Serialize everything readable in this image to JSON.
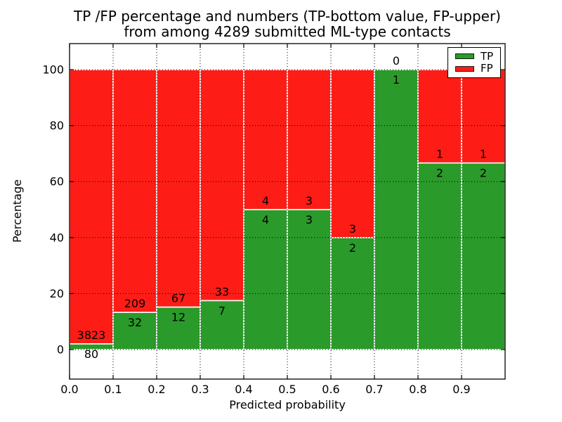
{
  "chart_data": {
    "type": "bar",
    "stacked": true,
    "title_line1": "TP /FP percentage and numbers (TP-bottom value, FP-upper)",
    "title_line2": "from among 4289 submitted ML-type contacts",
    "xlabel": "Predicted probability",
    "ylabel": "Percentage",
    "x_ticks": [
      0.0,
      0.1,
      0.2,
      0.3,
      0.4,
      0.5,
      0.6,
      0.7,
      0.8,
      0.9
    ],
    "x_tick_labels": [
      "0.0",
      "0.1",
      "0.2",
      "0.3",
      "0.4",
      "0.5",
      "0.6",
      "0.7",
      "0.8",
      "0.9"
    ],
    "y_ticks": [
      0,
      20,
      40,
      60,
      80,
      100
    ],
    "y_tick_labels": [
      "0",
      "20",
      "40",
      "60",
      "80",
      "100"
    ],
    "xlim": [
      0.0,
      1.0
    ],
    "ylim": [
      -10.5,
      109.5
    ],
    "grid": true,
    "grid_style": "dotted",
    "legend": {
      "position": "upper right",
      "entries": [
        {
          "label": "TP",
          "color": "#2a9a2a"
        },
        {
          "label": "FP",
          "color": "#fd1d16"
        }
      ]
    },
    "bins": [
      {
        "x_range": [
          0.0,
          0.1
        ],
        "tp": 80,
        "fp": 3823,
        "tp_pct": 2.0
      },
      {
        "x_range": [
          0.1,
          0.2
        ],
        "tp": 32,
        "fp": 209,
        "tp_pct": 13.3
      },
      {
        "x_range": [
          0.2,
          0.3
        ],
        "tp": 12,
        "fp": 67,
        "tp_pct": 15.2
      },
      {
        "x_range": [
          0.3,
          0.4
        ],
        "tp": 7,
        "fp": 33,
        "tp_pct": 17.5
      },
      {
        "x_range": [
          0.4,
          0.5
        ],
        "tp": 4,
        "fp": 4,
        "tp_pct": 50.0
      },
      {
        "x_range": [
          0.5,
          0.6
        ],
        "tp": 3,
        "fp": 3,
        "tp_pct": 50.0
      },
      {
        "x_range": [
          0.6,
          0.7
        ],
        "tp": 2,
        "fp": 3,
        "tp_pct": 40.0
      },
      {
        "x_range": [
          0.7,
          0.8
        ],
        "tp": 1,
        "fp": 0,
        "tp_pct": 100.0
      },
      {
        "x_range": [
          0.8,
          0.9
        ],
        "tp": 2,
        "fp": 1,
        "tp_pct": 66.7
      },
      {
        "x_range": [
          0.9,
          1.0
        ],
        "tp": 2,
        "fp": 1,
        "tp_pct": 66.7
      }
    ],
    "colors": {
      "tp": "#2a9a2a",
      "fp": "#fd1d16",
      "bar_edge": "#ffffff",
      "grid": "#000000",
      "text": "#000000",
      "axes_border": "#000000",
      "background": "#ffffff"
    }
  }
}
